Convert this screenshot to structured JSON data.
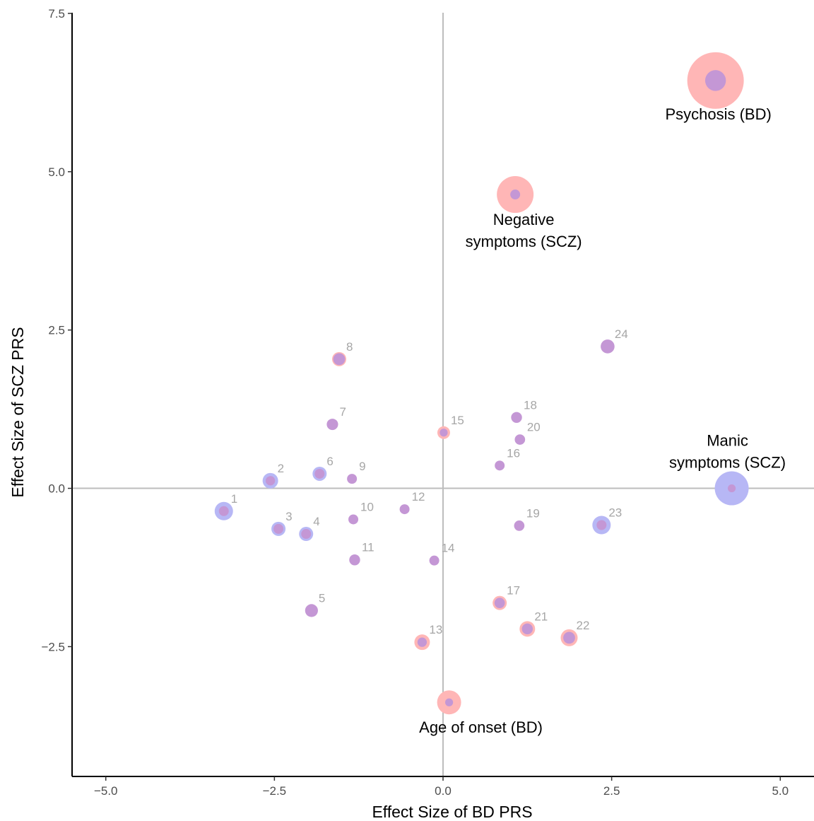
{
  "chart_data": {
    "type": "scatter",
    "xlabel": "Effect Size of BD PRS",
    "ylabel": "Effect Size of SCZ PRS",
    "xlim": [
      -5.5,
      5.5
    ],
    "ylim": [
      -4.55,
      7.6
    ],
    "xticks": [
      -5.0,
      -2.5,
      0.0,
      2.5,
      5.0
    ],
    "yticks": [
      -2.5,
      0.0,
      2.5,
      5.0,
      7.5
    ],
    "xtick_labels": [
      "−5.0",
      "−2.5",
      "0.0",
      "2.5",
      "5.0"
    ],
    "ytick_labels": [
      "−2.5",
      "0.0",
      "2.5",
      "5.0",
      "7.5"
    ],
    "grid": false,
    "reference_lines": {
      "x": 0,
      "y": 0
    },
    "colors": {
      "bd_ring": "#ffb6b6",
      "scz_ring": "#b7b7f5",
      "core": "#c497d5"
    },
    "points": [
      {
        "label": "1",
        "x": -3.25,
        "y": -0.36,
        "bd": 0,
        "scz": 1.3
      },
      {
        "label": "2",
        "x": -2.56,
        "y": 0.12,
        "bd": 0,
        "scz": 1.1
      },
      {
        "label": "3",
        "x": -2.44,
        "y": -0.64,
        "bd": 0,
        "scz": 1.0
      },
      {
        "label": "4",
        "x": -2.03,
        "y": -0.72,
        "bd": 0,
        "scz": 1.0
      },
      {
        "label": "5",
        "x": -1.95,
        "y": -1.93,
        "bd": 0,
        "scz": 0
      },
      {
        "label": "6",
        "x": -1.83,
        "y": 0.23,
        "bd": 0,
        "scz": 1.0
      },
      {
        "label": "7",
        "x": -1.64,
        "y": 1.01,
        "bd": 0,
        "scz": 0
      },
      {
        "label": "8",
        "x": -1.54,
        "y": 2.04,
        "bd": 1.0,
        "scz": 0
      },
      {
        "label": "9",
        "x": -1.35,
        "y": 0.15,
        "bd": 0,
        "scz": 0
      },
      {
        "label": "10",
        "x": -1.33,
        "y": -0.49,
        "bd": 0,
        "scz": 0
      },
      {
        "label": "11",
        "x": -1.31,
        "y": -1.13,
        "bd": 0,
        "scz": 0
      },
      {
        "label": "12",
        "x": -0.57,
        "y": -0.33,
        "bd": 0,
        "scz": 0
      },
      {
        "label": "13",
        "x": -0.31,
        "y": -2.43,
        "bd": 1.1,
        "scz": 0
      },
      {
        "label": "14",
        "x": -0.13,
        "y": -1.14,
        "bd": 0,
        "scz": 0
      },
      {
        "label": "15",
        "x": 0.01,
        "y": 0.88,
        "bd": 0.9,
        "scz": 0
      },
      {
        "label": "16",
        "x": 0.84,
        "y": 0.36,
        "bd": 0,
        "scz": 0
      },
      {
        "label": "17",
        "x": 0.84,
        "y": -1.81,
        "bd": 1.0,
        "scz": 0
      },
      {
        "label": "18",
        "x": 1.09,
        "y": 1.12,
        "bd": 0,
        "scz": 0
      },
      {
        "label": "19",
        "x": 1.13,
        "y": -0.59,
        "bd": 0,
        "scz": 0
      },
      {
        "label": "20",
        "x": 1.14,
        "y": 0.77,
        "bd": 0,
        "scz": 0
      },
      {
        "label": "21",
        "x": 1.25,
        "y": -2.22,
        "bd": 1.1,
        "scz": 0
      },
      {
        "label": "22",
        "x": 1.87,
        "y": -2.36,
        "bd": 1.2,
        "scz": 0
      },
      {
        "label": "23",
        "x": 2.35,
        "y": -0.58,
        "bd": 0,
        "scz": 1.3
      },
      {
        "label": "24",
        "x": 2.44,
        "y": 2.24,
        "bd": 0,
        "scz": 0
      }
    ],
    "annotated": [
      {
        "label": "Psychosis (BD)",
        "x": 4.04,
        "y": 6.44,
        "bd": 4.0,
        "scz": 0,
        "core": 2.1
      },
      {
        "label": "Negative symptoms (SCZ)",
        "x": 1.07,
        "y": 4.64,
        "bd": 2.6,
        "scz": 0,
        "core": 1.0
      },
      {
        "label": "Manic symptoms (SCZ)",
        "x": 4.28,
        "y": 0.0,
        "bd": 0,
        "scz": 2.4,
        "core": 0.8
      },
      {
        "label": "Age of onset (BD)",
        "x": 0.09,
        "y": -3.38,
        "bd": 1.7,
        "scz": 0,
        "core": 0.8
      }
    ],
    "annotation_lines": {
      "Psychosis (BD)": [
        "Psychosis (BD)"
      ],
      "Negative symptoms (SCZ)": [
        "Negative",
        "symptoms (SCZ)"
      ],
      "Manic symptoms (SCZ)": [
        "Manic",
        "symptoms (SCZ)"
      ],
      "Age of onset (BD)": [
        "Age of onset (BD)"
      ]
    }
  }
}
